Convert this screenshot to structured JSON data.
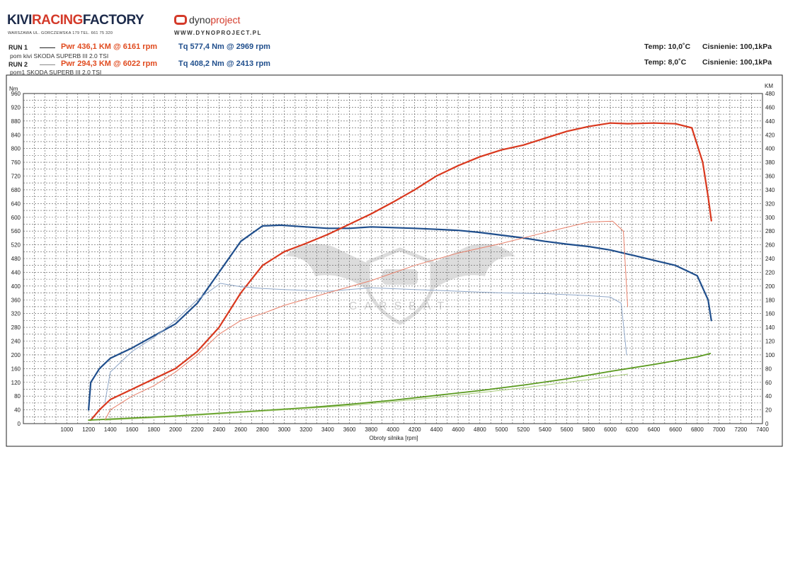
{
  "header": {
    "brand_left": "KIVI",
    "brand_mid": "RACING",
    "brand_right": "FACTORY",
    "brand_sub": "WARSZAWA UL. GORCZEWSKA 179   TEL. 661 75 320",
    "dyno_word_a": "dyno",
    "dyno_word_b": "project",
    "dyno_url": "WWW.DYNOPROJECT.PL"
  },
  "runs": [
    {
      "label": "RUN 1",
      "pwr": "Pwr  436,1 KM @ 6161 rpm",
      "tq": "Tq  577,4 Nm @ 2969 rpm",
      "car": "pom kivi  SKODA SUPERB III 2.0 TSI",
      "temp": "Temp: 10,0˚C",
      "pressure": "Cisnienie: 100,1kPa"
    },
    {
      "label": "RUN 2",
      "pwr": "Pwr  294,3 KM @ 6022 rpm",
      "tq": "Tq  408,2 Nm @ 2413 rpm",
      "car": "pom1  SKODA SUPERB III 2.0 TSI",
      "temp": "Temp: 8,0˚C",
      "pressure": "Cisnienie: 100,1kPa"
    }
  ],
  "watermark": "CARSBAT",
  "colors": {
    "power": "#d9381e",
    "power_run2": "#e8806a",
    "torque": "#1f4e8c",
    "torque_run2": "#8fa7c8",
    "loss": "#5a9a1e",
    "loss_run2": "#a8cc7a",
    "grid": "#555555"
  },
  "chart_data": {
    "type": "line",
    "xlabel": "Obroty silnika [rpm]",
    "ylabel": "Nm",
    "ylabel_right": "KM",
    "xlim": [
      600,
      7400
    ],
    "ylim": [
      0,
      960
    ],
    "ylim_right": [
      0,
      480
    ],
    "grid": true,
    "x_ticks": [
      1000,
      1200,
      1400,
      1600,
      1800,
      2000,
      2200,
      2400,
      2600,
      2800,
      3000,
      3200,
      3400,
      3600,
      3800,
      4000,
      4200,
      4400,
      4600,
      4800,
      5000,
      5200,
      5400,
      5600,
      5800,
      6000,
      6200,
      6400,
      6600,
      6800,
      7000,
      7200,
      7400
    ],
    "y_ticks_left": [
      0,
      40,
      80,
      120,
      160,
      200,
      240,
      280,
      320,
      360,
      400,
      440,
      480,
      520,
      560,
      600,
      640,
      680,
      720,
      760,
      800,
      840,
      880,
      920,
      960
    ],
    "y_ticks_right": [
      0,
      20,
      40,
      60,
      80,
      100,
      120,
      140,
      160,
      180,
      200,
      220,
      240,
      260,
      280,
      300,
      320,
      340,
      360,
      380,
      400,
      420,
      440,
      460,
      480
    ],
    "series": [
      {
        "key": "run1_torque",
        "axis": "left",
        "color": "#1f4e8c",
        "width": 2.2,
        "x": [
          1200,
          1220,
          1300,
          1400,
          1600,
          1800,
          2000,
          2200,
          2400,
          2600,
          2800,
          2969,
          3200,
          3400,
          3600,
          3800,
          4000,
          4200,
          4400,
          4600,
          4800,
          5000,
          5200,
          5400,
          5600,
          5800,
          6000,
          6200,
          6400,
          6600,
          6800,
          6900,
          6930
        ],
        "y": [
          40,
          120,
          160,
          190,
          220,
          255,
          290,
          350,
          440,
          530,
          575,
          577,
          572,
          568,
          568,
          572,
          570,
          568,
          565,
          562,
          556,
          548,
          540,
          530,
          522,
          515,
          505,
          490,
          475,
          460,
          430,
          360,
          300
        ]
      },
      {
        "key": "run1_power",
        "axis": "right",
        "color": "#d9381e",
        "width": 2.2,
        "x": [
          1220,
          1300,
          1400,
          1600,
          1800,
          2000,
          2200,
          2400,
          2600,
          2800,
          3000,
          3200,
          3400,
          3600,
          3800,
          4000,
          4200,
          4400,
          4600,
          4800,
          5000,
          5200,
          5400,
          5600,
          5800,
          6000,
          6161,
          6400,
          6600,
          6750,
          6850,
          6900,
          6930
        ],
        "y": [
          5,
          20,
          35,
          50,
          65,
          80,
          105,
          140,
          190,
          230,
          250,
          262,
          275,
          290,
          305,
          322,
          340,
          360,
          375,
          388,
          398,
          405,
          415,
          425,
          432,
          437,
          436.1,
          437,
          436,
          430,
          380,
          330,
          295
        ]
      },
      {
        "key": "run1_loss",
        "axis": "right",
        "color": "#5a9a1e",
        "width": 1.8,
        "x": [
          1200,
          1600,
          2000,
          2400,
          2800,
          3200,
          3600,
          4000,
          4400,
          4800,
          5200,
          5600,
          6000,
          6400,
          6800,
          6920
        ],
        "y": [
          5,
          8,
          11,
          15,
          19,
          23,
          28,
          34,
          41,
          48,
          56,
          65,
          76,
          86,
          97,
          102
        ]
      },
      {
        "key": "run2_torque",
        "axis": "left",
        "color": "#8fa7c8",
        "width": 1.0,
        "x": [
          1350,
          1400,
          1600,
          1800,
          2000,
          2200,
          2413,
          2600,
          2800,
          3000,
          3400,
          3800,
          4200,
          4600,
          5000,
          5400,
          5800,
          6000,
          6100,
          6150
        ],
        "y": [
          60,
          150,
          210,
          250,
          300,
          360,
          408,
          398,
          393,
          390,
          385,
          395,
          390,
          385,
          380,
          378,
          372,
          368,
          350,
          200
        ]
      },
      {
        "key": "run2_power",
        "axis": "right",
        "color": "#e8806a",
        "width": 1.0,
        "x": [
          1350,
          1400,
          1600,
          1800,
          2000,
          2200,
          2400,
          2600,
          2800,
          3000,
          3400,
          3800,
          4200,
          4600,
          5000,
          5400,
          5800,
          6022,
          6120,
          6160
        ],
        "y": [
          5,
          20,
          40,
          55,
          75,
          100,
          130,
          150,
          160,
          172,
          190,
          208,
          230,
          248,
          262,
          278,
          293,
          294.3,
          280,
          170
        ]
      },
      {
        "key": "run2_loss",
        "axis": "right",
        "color": "#a8cc7a",
        "width": 1.0,
        "x": [
          1350,
          2000,
          2800,
          3600,
          4400,
          5200,
          5800,
          6160
        ],
        "y": [
          5,
          10,
          18,
          26,
          38,
          52,
          64,
          72
        ]
      }
    ]
  }
}
